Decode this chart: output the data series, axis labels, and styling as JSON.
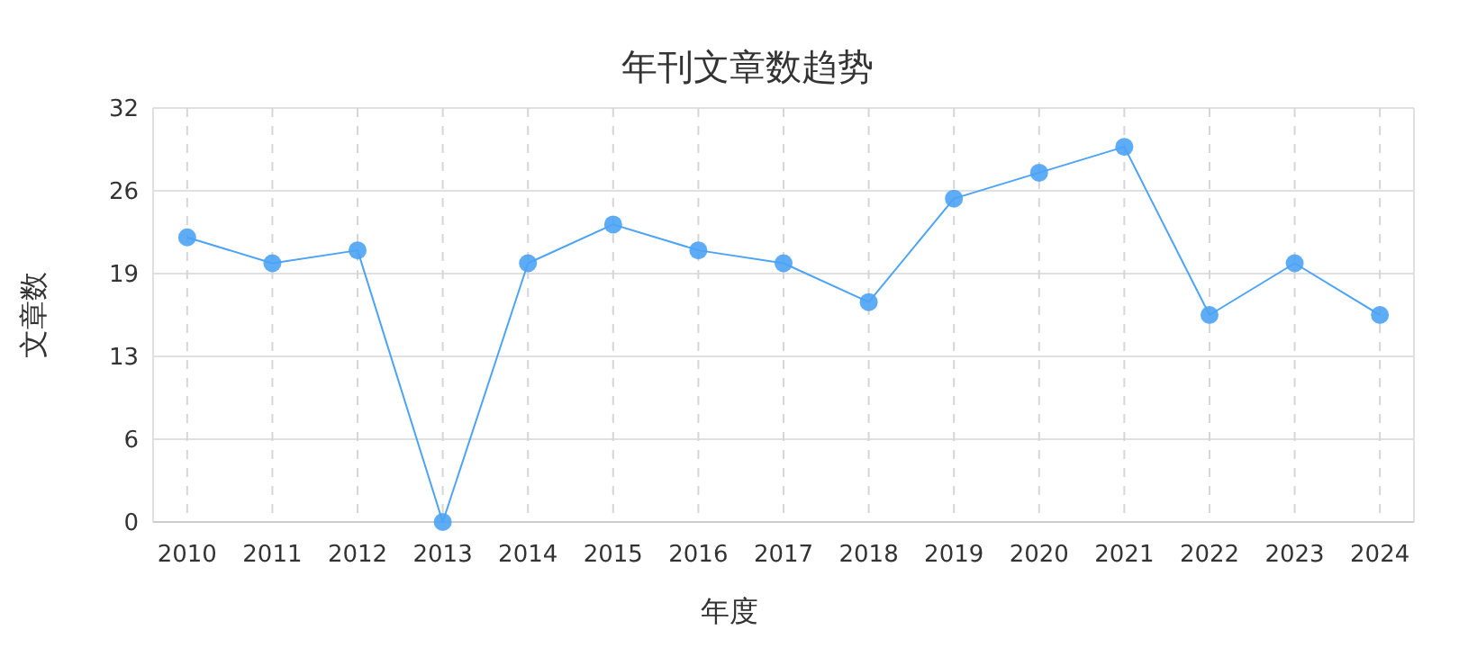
{
  "chart_data": {
    "type": "line",
    "title": "年刊文章数趋势",
    "xlabel": "年度",
    "ylabel": "文章数",
    "categories": [
      "2010",
      "2011",
      "2012",
      "2013",
      "2014",
      "2015",
      "2016",
      "2017",
      "2018",
      "2019",
      "2020",
      "2021",
      "2022",
      "2023",
      "2024"
    ],
    "series": [
      {
        "color": "#4da3f5",
        "values": [
          22,
          20,
          21,
          0,
          20,
          23,
          21,
          20,
          17,
          25,
          27,
          29,
          16,
          20,
          16
        ]
      }
    ],
    "ylim": [
      0,
      32
    ],
    "yticks": [
      0,
      {
        "value": 6.4,
        "label": "6"
      },
      {
        "value": 12.8,
        "label": "13"
      },
      {
        "value": 19.2,
        "label": "19"
      },
      {
        "value": 25.6,
        "label": "26"
      },
      32
    ],
    "grid": true,
    "marker": "circle",
    "line_style": "solid"
  }
}
